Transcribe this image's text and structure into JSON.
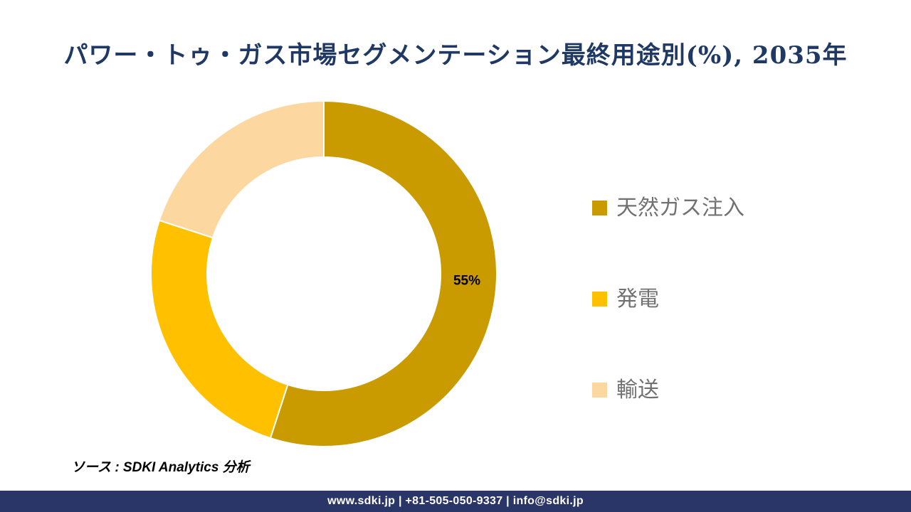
{
  "title": "パワー・トゥ・ガス市場セグメンテーション最終用途別(%), 2035年",
  "chart_data": {
    "type": "pie",
    "subtype": "donut",
    "title": "パワー・トゥ・ガス市場セグメンテーション最終用途別(%), 2035年",
    "categories": [
      "天然ガス注入",
      "発電",
      "輸送"
    ],
    "values": [
      55,
      25,
      20
    ],
    "unit": "%",
    "colors": [
      "#C99B00",
      "#FFC000",
      "#FCD7A0"
    ],
    "data_labels": [
      {
        "slice_index": 0,
        "text": "55%"
      }
    ],
    "start_angle_deg": 0,
    "direction": "clockwise",
    "inner_radius_ratio": 0.674,
    "legend_position": "right",
    "separator_color": "#FFFFFF"
  },
  "legend": {
    "items": [
      {
        "label": "天然ガス注入",
        "color": "#C99B00"
      },
      {
        "label": "発電",
        "color": "#FFC000"
      },
      {
        "label": "輸送",
        "color": "#FCD7A0"
      }
    ]
  },
  "source_note": "ソース : SDKI Analytics 分析",
  "footer": {
    "text": "www.sdki.jp | +81-505-050-9337 | info@sdki.jp"
  },
  "theme": {
    "title_color": "#1F3864",
    "footer_bg": "#2A3568",
    "footer_text_color": "#FFFFFF",
    "legend_text_color": "#717171",
    "data_label_color": "#000000",
    "background": "#FFFFFF"
  }
}
